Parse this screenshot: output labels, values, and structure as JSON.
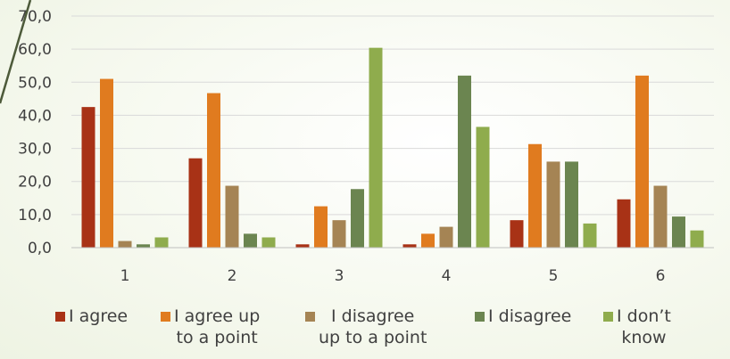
{
  "chart_data": {
    "type": "bar",
    "categories": [
      "1",
      "2",
      "3",
      "4",
      "5",
      "6"
    ],
    "series": [
      {
        "name": "I agree",
        "color": "#a83216",
        "values": [
          42.5,
          27.0,
          1.0,
          1.0,
          8.3,
          14.6
        ]
      },
      {
        "name": "I agree up to a point",
        "color": "#e07b1f",
        "values": [
          51.0,
          46.7,
          12.5,
          4.2,
          31.3,
          52.0
        ]
      },
      {
        "name": "I disagree up to a point",
        "color": "#a58454",
        "values": [
          2.0,
          18.7,
          8.3,
          6.3,
          26.0,
          18.7
        ]
      },
      {
        "name": "I disagree",
        "color": "#6b8550",
        "values": [
          1.0,
          4.2,
          17.7,
          52.0,
          26.0,
          9.4
        ]
      },
      {
        "name": "I don’t know",
        "color": "#8fac4d",
        "values": [
          3.1,
          3.1,
          60.4,
          36.5,
          7.3,
          5.2
        ]
      }
    ],
    "y_ticks": [
      "0,0",
      "10,0",
      "20,0",
      "30,0",
      "40,0",
      "50,0",
      "60,0",
      "70,0"
    ],
    "ylim": [
      0,
      70
    ],
    "grid": true,
    "legend_position": "bottom"
  },
  "legend": {
    "items": [
      {
        "line1": "I agree",
        "line2": ""
      },
      {
        "line1": "I agree up",
        "line2": "to a point"
      },
      {
        "line1": "I disagree",
        "line2": "up to a point"
      },
      {
        "line1": "I disagree",
        "line2": ""
      },
      {
        "line1": "I don’t",
        "line2": "know"
      }
    ]
  },
  "decoration": {
    "slash_color": "#4d5a3a"
  }
}
